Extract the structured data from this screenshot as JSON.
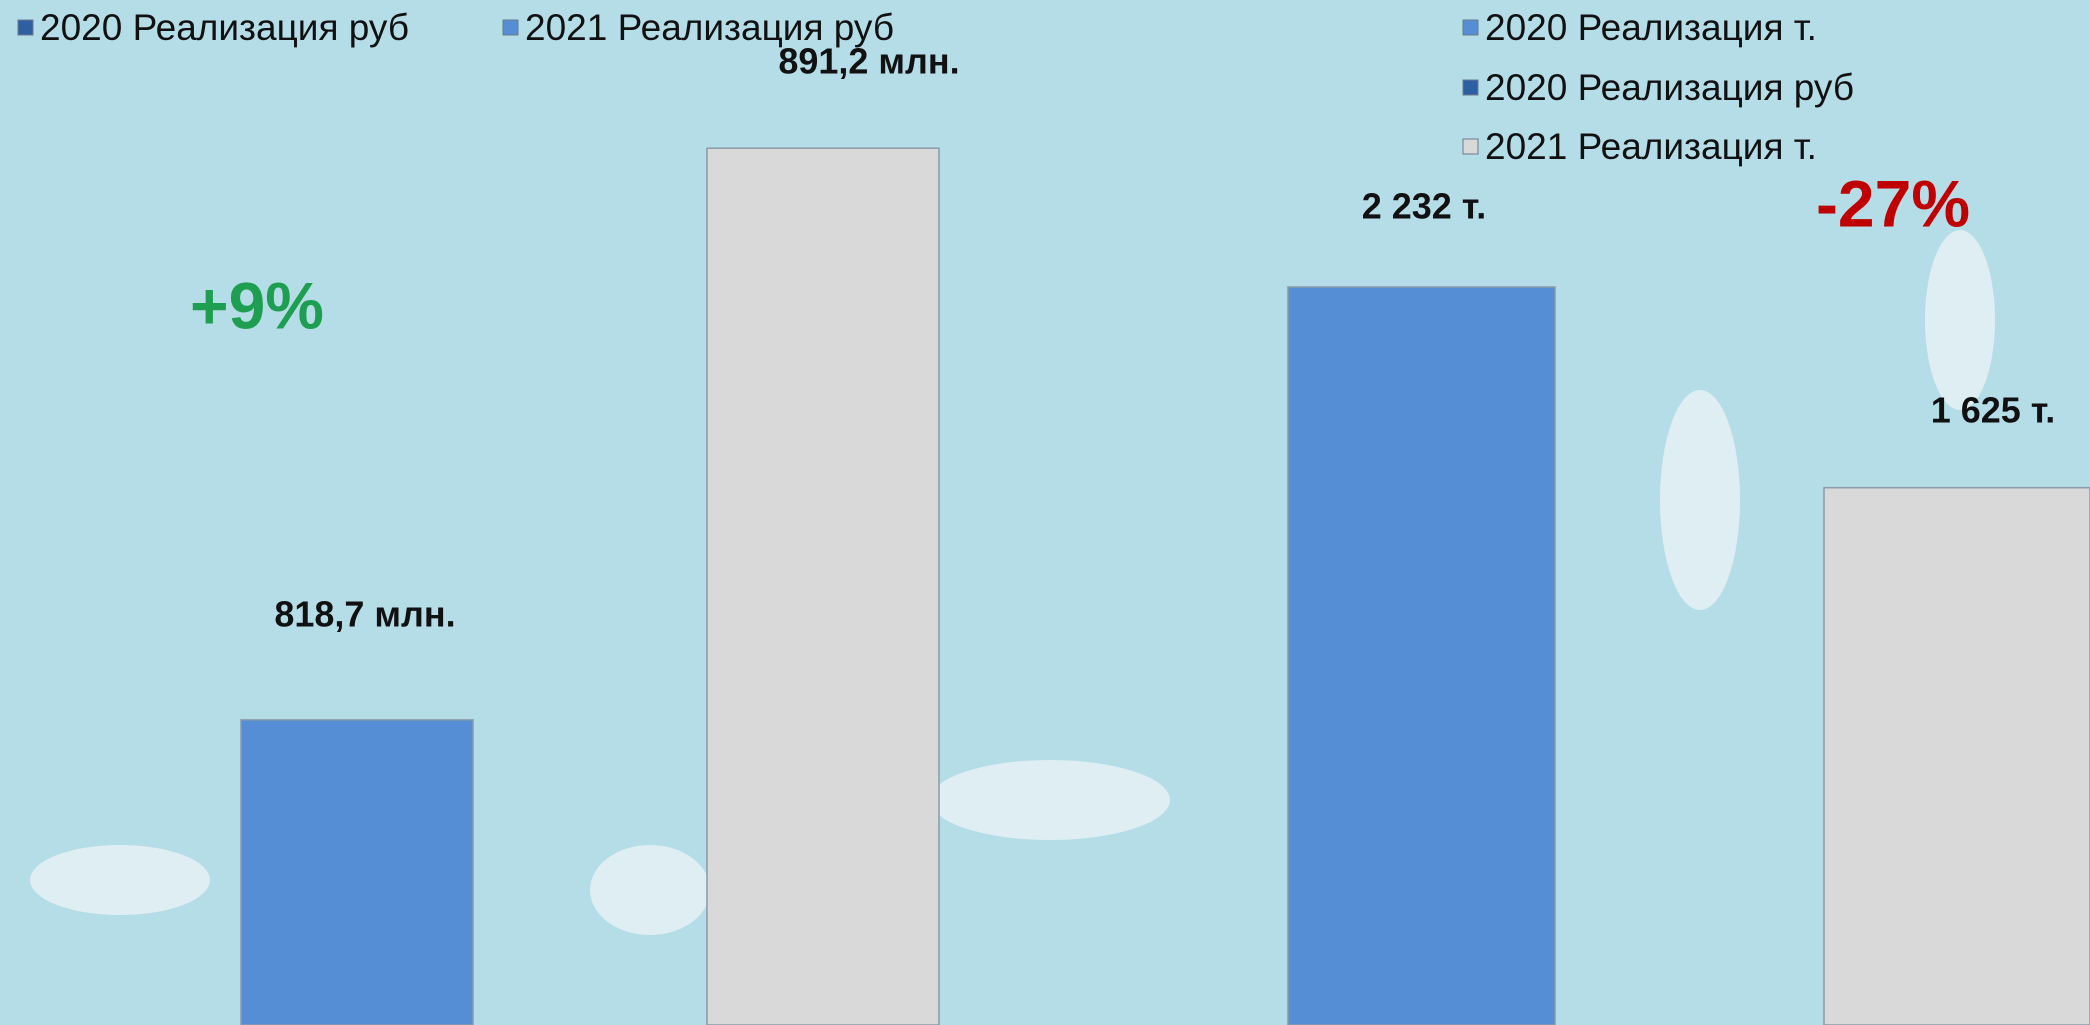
{
  "chart_data": [
    {
      "type": "bar",
      "legend": [
        {
          "name": "2020 Реализация руб",
          "color": "#2e5fa3"
        },
        {
          "name": "2021 Реализация руб",
          "color": "#558ed5"
        }
      ],
      "values": [
        818.7,
        891.2
      ],
      "value_labels": [
        "818,7 млн.",
        "891,2 млн."
      ],
      "colors": [
        "#558ed5",
        "#d9d9d9"
      ],
      "ylim": [
        780,
        910
      ],
      "annotation": "+9%",
      "annotation_color": "#1e9e50"
    },
    {
      "type": "bar",
      "legend": [
        {
          "name": "2020 Реализация т.",
          "color": "#558ed5"
        },
        {
          "name": "2020 Реализация руб",
          "color": "#2e5fa3"
        },
        {
          "name": "2021 Реализация т.",
          "color": "#d9d9d9"
        }
      ],
      "values": [
        2232,
        1625
      ],
      "value_labels": [
        "2 232 т.",
        "1 625 т."
      ],
      "colors": [
        "#558ed5",
        "#d9d9d9"
      ],
      "ylim": [
        0,
        3100
      ],
      "annotation": "-27%",
      "annotation_color": "#c00000"
    }
  ]
}
